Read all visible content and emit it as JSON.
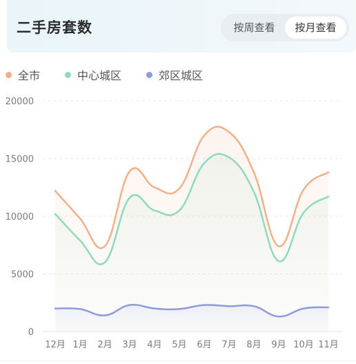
{
  "header": {
    "title": "二手房套数",
    "tabs": [
      {
        "label": "按周查看",
        "active": false
      },
      {
        "label": "按月查看",
        "active": true
      }
    ]
  },
  "colors": {
    "all_city": "#f0b08b",
    "center": "#8fd9bd",
    "suburb": "#8d9bdc"
  },
  "chart_data": {
    "type": "line",
    "categories": [
      "12月",
      "1月",
      "2月",
      "3月",
      "4月",
      "5月",
      "6月",
      "7月",
      "8月",
      "9月",
      "10月",
      "11月"
    ],
    "yticks": [
      "0",
      "5000",
      "10000",
      "15000",
      "20000"
    ],
    "ylim": [
      0,
      20000
    ],
    "grid": true,
    "legend_position": "top-left",
    "series": [
      {
        "name": "全市",
        "color": "#f0b08b",
        "values": [
          12200,
          9800,
          7400,
          13900,
          12500,
          12400,
          17000,
          17300,
          13800,
          7400,
          12300,
          13800
        ]
      },
      {
        "name": "中心城区",
        "color": "#8fd9bd",
        "values": [
          10200,
          7900,
          6000,
          11600,
          10500,
          10500,
          14600,
          15100,
          12100,
          6100,
          10300,
          11700
        ]
      },
      {
        "name": "郊区城区",
        "color": "#8d9bdc",
        "values": [
          2000,
          1950,
          1400,
          2300,
          2000,
          1950,
          2300,
          2200,
          2200,
          1300,
          2000,
          2100
        ]
      }
    ]
  }
}
